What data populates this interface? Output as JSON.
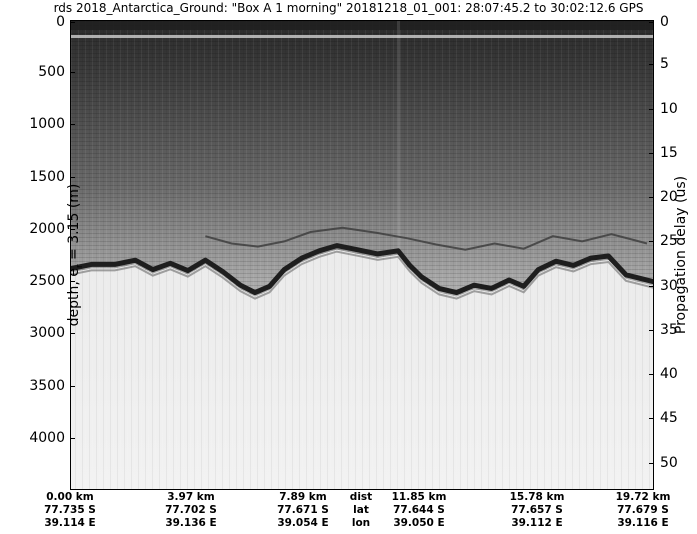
{
  "title": "rds 2018_Antarctica_Ground: \"Box A 1 morning\"  20181218_01_001: 28:07:45.2 to 30:02:12.6 GPS",
  "chart_data": {
    "type": "heatmap",
    "colormap": "grayscale",
    "ylabel_left": "depth, e_r = 3.15 (m)",
    "ylabel_left_main": "depth, e",
    "ylabel_left_sub": "r",
    "ylabel_left_rest": " = 3.15 (m)",
    "ylabel_right": "Propagation delay (us)",
    "depth_ticks": [
      "0",
      "500",
      "1000",
      "1500",
      "2000",
      "2500",
      "3000",
      "3500",
      "4000"
    ],
    "depth_tick_values": [
      0,
      500,
      1000,
      1500,
      2000,
      2500,
      3000,
      3500,
      4000
    ],
    "ylim_depth": [
      0,
      4500
    ],
    "delay_ticks": [
      "0",
      "5",
      "10",
      "15",
      "20",
      "25",
      "30",
      "35",
      "40",
      "45",
      "50"
    ],
    "delay_tick_values": [
      0,
      5,
      10,
      15,
      20,
      25,
      30,
      35,
      40,
      45,
      50
    ],
    "ylim_delay": [
      0,
      53.1
    ],
    "xlim_km": [
      0,
      19.72
    ],
    "x_columns": [
      {
        "dist": "0.00 km",
        "lat": "77.735 S",
        "lon": "39.114 E",
        "km": 0.0
      },
      {
        "dist": "3.97 km",
        "lat": "77.702 S",
        "lon": "39.136 E",
        "km": 3.97
      },
      {
        "dist": "7.89 km",
        "lat": "77.671 S",
        "lon": "39.054 E",
        "km": 7.89
      },
      {
        "dist": "11.85 km",
        "lat": "77.644 S",
        "lon": "39.050 E",
        "km": 11.85
      },
      {
        "dist": "15.78 km",
        "lat": "77.657 S",
        "lon": "39.112 E",
        "km": 15.78
      },
      {
        "dist": "19.72 km",
        "lat": "77.679 S",
        "lon": "39.116 E",
        "km": 19.72
      }
    ],
    "row_labels": [
      "dist",
      "lat",
      "lon"
    ],
    "bed_interface_depth": {
      "km": [
        0.0,
        0.7,
        1.5,
        2.2,
        2.8,
        3.4,
        4.0,
        4.6,
        5.2,
        5.8,
        6.3,
        6.8,
        7.3,
        7.9,
        8.5,
        9.1,
        9.8,
        10.5,
        11.2,
        11.6,
        12.0,
        12.6,
        13.2,
        13.8,
        14.4,
        15.0,
        15.5,
        16.0,
        16.6,
        17.2,
        17.8,
        18.4,
        19.0,
        19.72
      ],
      "depth_m": [
        2370,
        2330,
        2330,
        2290,
        2380,
        2320,
        2390,
        2290,
        2400,
        2530,
        2600,
        2540,
        2380,
        2270,
        2200,
        2150,
        2190,
        2230,
        2200,
        2340,
        2450,
        2560,
        2600,
        2530,
        2560,
        2480,
        2540,
        2380,
        2300,
        2340,
        2270,
        2250,
        2430,
        2500
      ]
    },
    "internal_layer_depth": {
      "km": [
        4.6,
        5.5,
        6.4,
        7.3,
        8.2,
        9.3,
        10.5,
        11.5,
        12.5,
        13.5,
        14.5,
        15.5,
        16.5,
        17.5,
        18.5,
        19.72
      ],
      "depth_m": [
        2060,
        2130,
        2160,
        2110,
        2020,
        1980,
        2030,
        2080,
        2140,
        2190,
        2130,
        2180,
        2060,
        2110,
        2040,
        2130
      ]
    }
  }
}
